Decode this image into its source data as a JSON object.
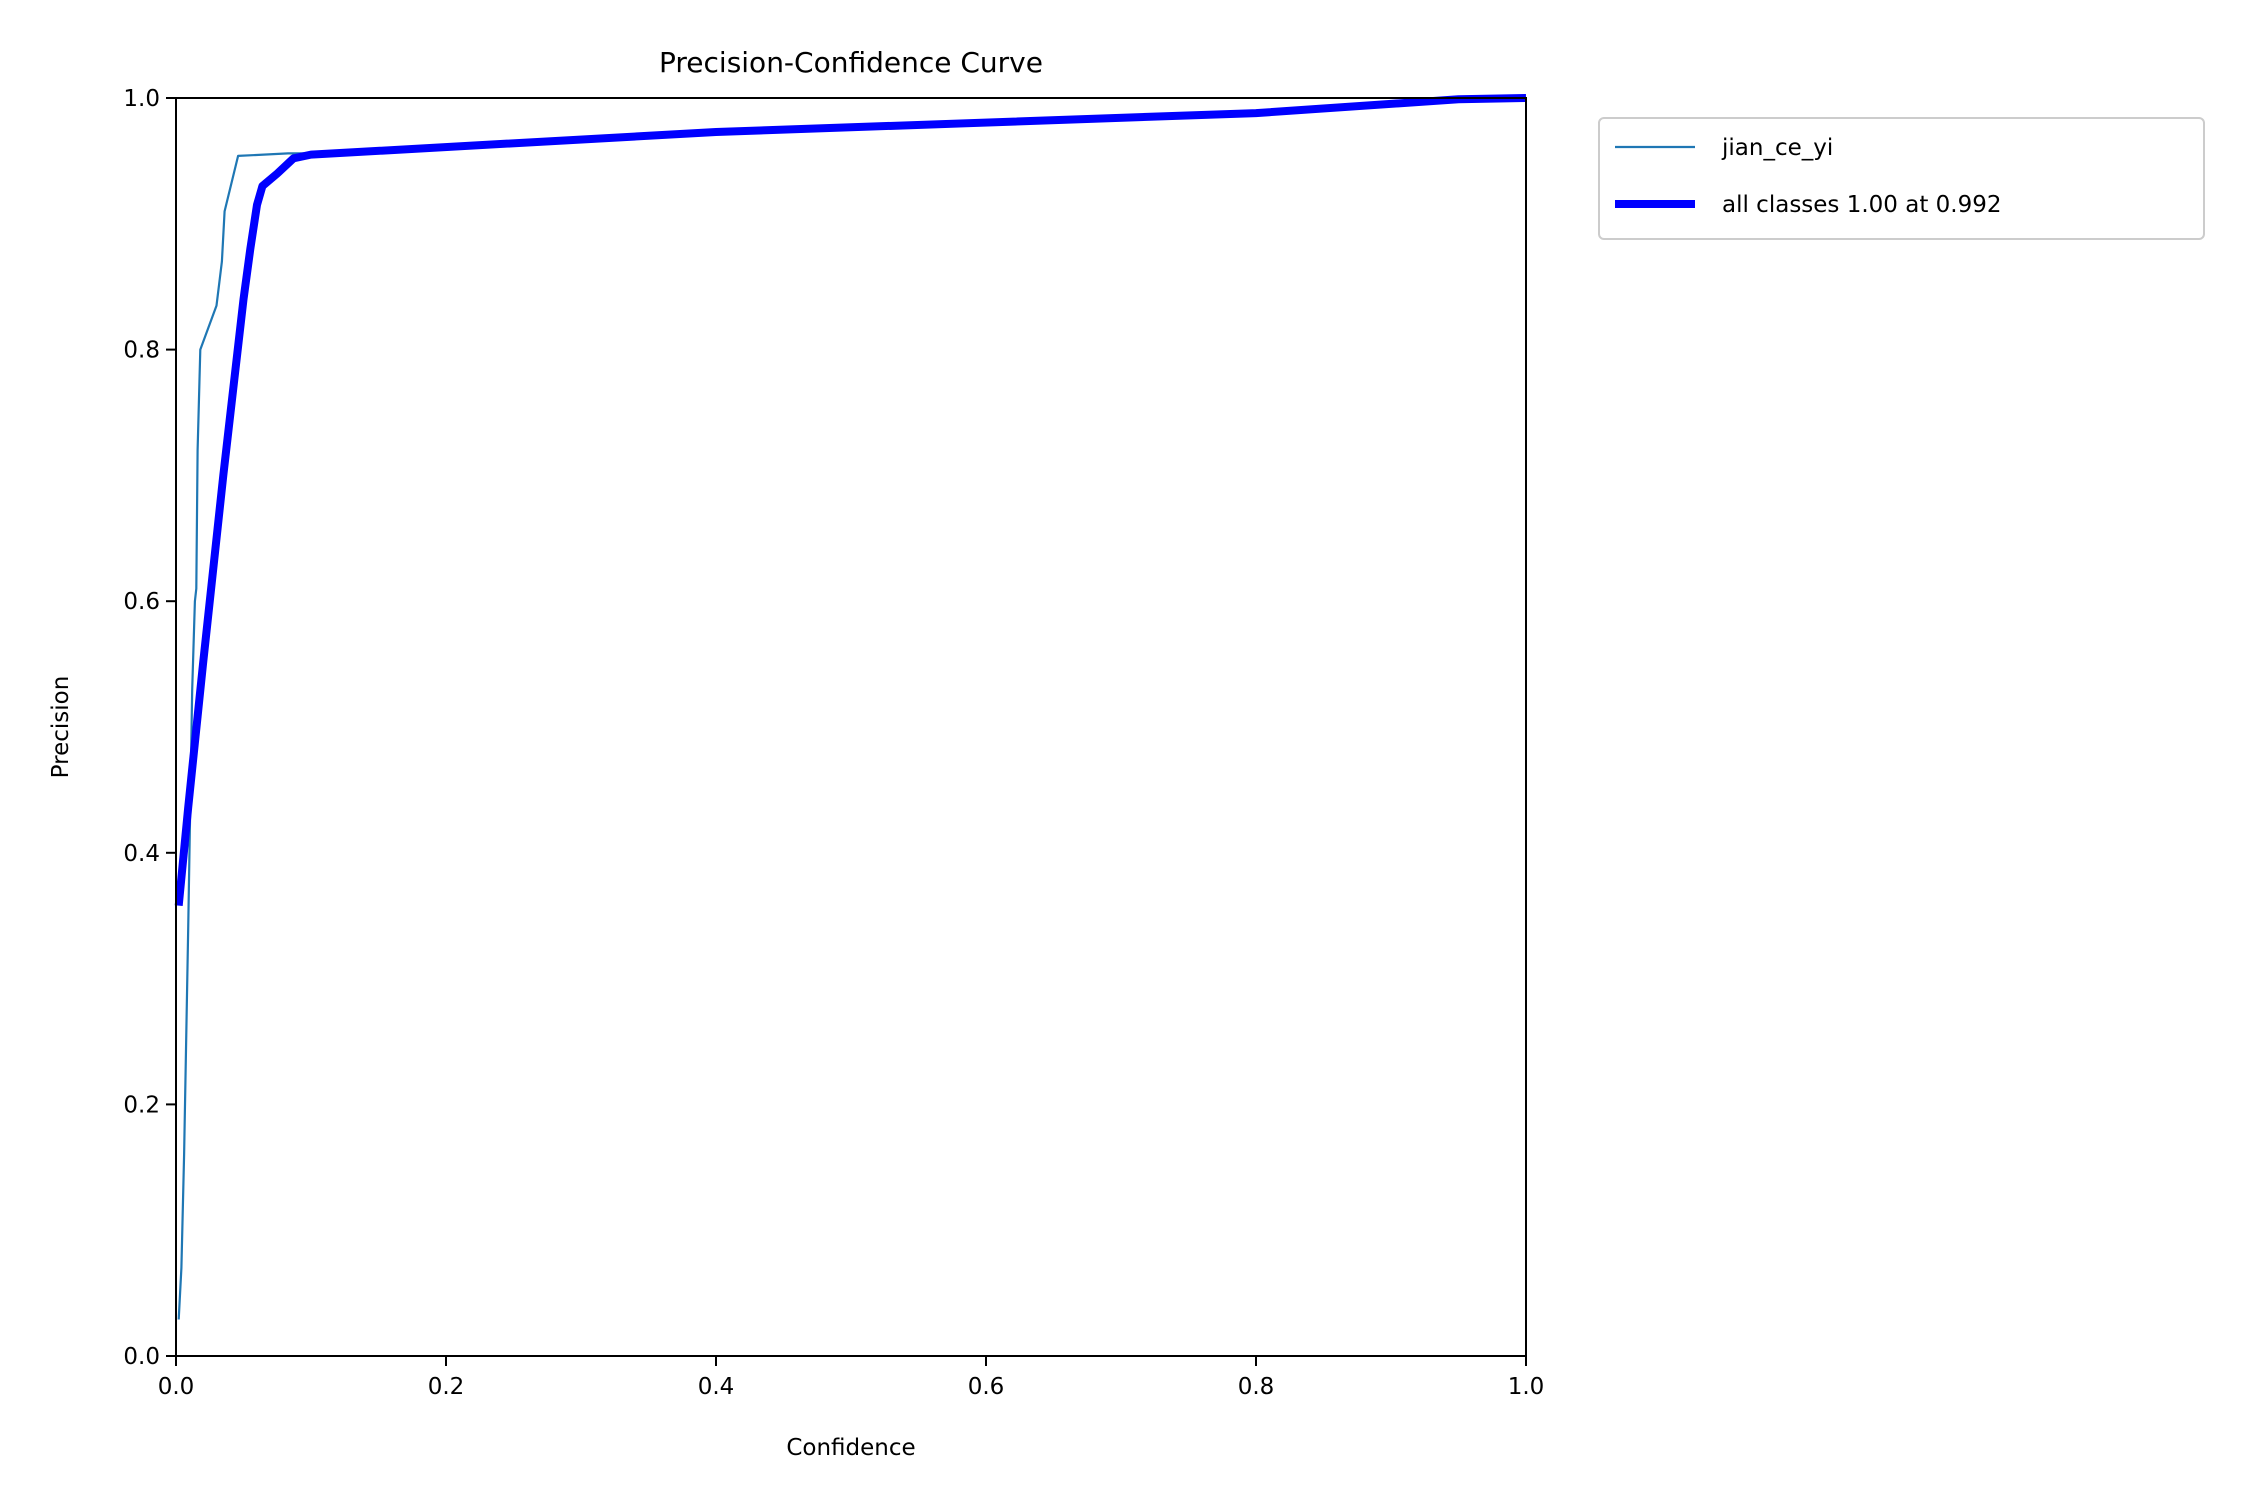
{
  "chart_data": {
    "type": "line",
    "title": "Precision-Confidence Curve",
    "xlabel": "Confidence",
    "ylabel": "Precision",
    "xlim": [
      0,
      1
    ],
    "ylim": [
      0,
      1
    ],
    "xticks": [
      "0.0",
      "0.2",
      "0.4",
      "0.6",
      "0.8",
      "1.0"
    ],
    "yticks": [
      "0.0",
      "0.2",
      "0.4",
      "0.6",
      "0.8",
      "1.0"
    ],
    "grid": false,
    "legend_placement": "outside-top-right",
    "series": [
      {
        "name": "jian_ce_yi",
        "color": "#1f77b4",
        "x": [
          0.002,
          0.004,
          0.006,
          0.009,
          0.012,
          0.014,
          0.015,
          0.016,
          0.018,
          0.03,
          0.034,
          0.036,
          0.046,
          0.083,
          0.1,
          0.4,
          0.8,
          0.95,
          1.0
        ],
        "y": [
          0.029,
          0.07,
          0.16,
          0.34,
          0.53,
          0.6,
          0.61,
          0.72,
          0.8,
          0.835,
          0.87,
          0.91,
          0.954,
          0.956,
          0.956,
          0.973,
          0.988,
          0.999,
          1.0
        ]
      },
      {
        "name": "all classes 1.00 at 0.992",
        "color": "#0000ff",
        "x": [
          0.002,
          0.009,
          0.02,
          0.035,
          0.05,
          0.055,
          0.06,
          0.064,
          0.075,
          0.087,
          0.1,
          0.4,
          0.8,
          0.95,
          1.0
        ],
        "y": [
          0.358,
          0.436,
          0.55,
          0.7,
          0.84,
          0.88,
          0.915,
          0.93,
          0.94,
          0.952,
          0.955,
          0.973,
          0.988,
          0.999,
          1.0
        ]
      }
    ]
  }
}
